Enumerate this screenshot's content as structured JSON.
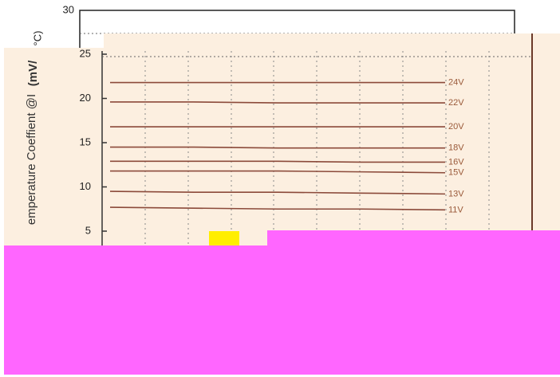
{
  "chart_data": {
    "type": "line",
    "back_axis": {
      "ylabel": "°C)",
      "yticks": [
        30
      ]
    },
    "ylabel": "emperature Coeffient @I",
    "ylabel_unit": "(mV/",
    "categories": [
      null,
      null,
      null,
      null,
      null
    ],
    "ylim": [
      5,
      25
    ],
    "yticks": [
      5,
      10,
      15,
      20,
      25
    ],
    "color": "#8b4a3a",
    "series": [
      {
        "name": "24V",
        "values": [
          21.8,
          21.8,
          21.8,
          21.8,
          21.8
        ]
      },
      {
        "name": "22V",
        "values": [
          19.6,
          19.6,
          19.5,
          19.5,
          19.5
        ]
      },
      {
        "name": "20V",
        "values": [
          16.8,
          16.8,
          16.8,
          16.8,
          16.8
        ]
      },
      {
        "name": "18V",
        "values": [
          14.5,
          14.5,
          14.4,
          14.4,
          14.4
        ]
      },
      {
        "name": "16V",
        "values": [
          12.9,
          12.9,
          12.9,
          12.8,
          12.8
        ]
      },
      {
        "name": "15V",
        "values": [
          11.8,
          11.8,
          11.8,
          11.7,
          11.6
        ]
      },
      {
        "name": "13V",
        "values": [
          9.5,
          9.4,
          9.4,
          9.3,
          9.2
        ]
      },
      {
        "name": "11V",
        "values": [
          7.7,
          7.6,
          7.5,
          7.5,
          7.4
        ]
      }
    ]
  }
}
